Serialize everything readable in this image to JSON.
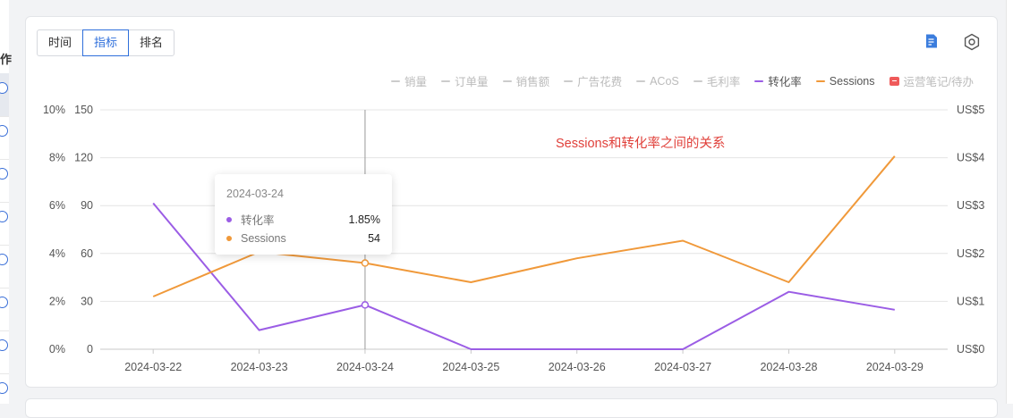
{
  "toolbar": {
    "tabs": [
      {
        "label": "时间",
        "active": false
      },
      {
        "label": "指标",
        "active": true
      },
      {
        "label": "排名",
        "active": false
      }
    ],
    "doc_icon": "doc-edit-icon",
    "settings_icon": "gear-icon"
  },
  "legend": [
    {
      "label": "销量",
      "active": false
    },
    {
      "label": "订单量",
      "active": false
    },
    {
      "label": "销售额",
      "active": false
    },
    {
      "label": "广告花费",
      "active": false
    },
    {
      "label": "ACoS",
      "active": false
    },
    {
      "label": "毛利率",
      "active": false
    },
    {
      "label": "转化率",
      "active": true,
      "color": "#9b5de5"
    },
    {
      "label": "Sessions",
      "active": true,
      "color": "#f0993a"
    },
    {
      "label": "运营笔记/待办",
      "active": false,
      "icon": "note-icon",
      "color": "#ef5a5a"
    }
  ],
  "annotation": "Sessions和转化率之间的关系",
  "tooltip": {
    "date": "2024-03-24",
    "rows": [
      {
        "name": "转化率",
        "value": "1.85%",
        "color": "#9b5de5"
      },
      {
        "name": "Sessions",
        "value": "54",
        "color": "#f0993a"
      }
    ]
  },
  "left_edge": {
    "cut_text": "作"
  },
  "chart_data": {
    "type": "line",
    "x": [
      "2024-03-22",
      "2024-03-23",
      "2024-03-24",
      "2024-03-25",
      "2024-03-26",
      "2024-03-27",
      "2024-03-28",
      "2024-03-29"
    ],
    "series": [
      {
        "name": "转化率",
        "axis": "left-percent",
        "color": "#9b5de5",
        "values": [
          6.1,
          0.8,
          1.85,
          0,
          0,
          0,
          2.4,
          1.65
        ]
      },
      {
        "name": "Sessions",
        "axis": "left-count",
        "color": "#f0993a",
        "values": [
          33,
          61,
          54,
          42,
          57,
          68,
          42,
          121
        ]
      }
    ],
    "axes": {
      "left_percent": {
        "ticks": [
          "0%",
          "2%",
          "4%",
          "6%",
          "8%",
          "10%"
        ],
        "ylim": [
          0,
          10
        ]
      },
      "left_count": {
        "ticks": [
          "0",
          "30",
          "60",
          "90",
          "120",
          "150"
        ],
        "ylim": [
          0,
          150
        ]
      },
      "right_currency": {
        "ticks": [
          "US$0",
          "US$1",
          "US$2",
          "US$3",
          "US$4",
          "US$5"
        ],
        "ylim": [
          0,
          5
        ]
      }
    },
    "hover_index": 2,
    "grid": true
  }
}
